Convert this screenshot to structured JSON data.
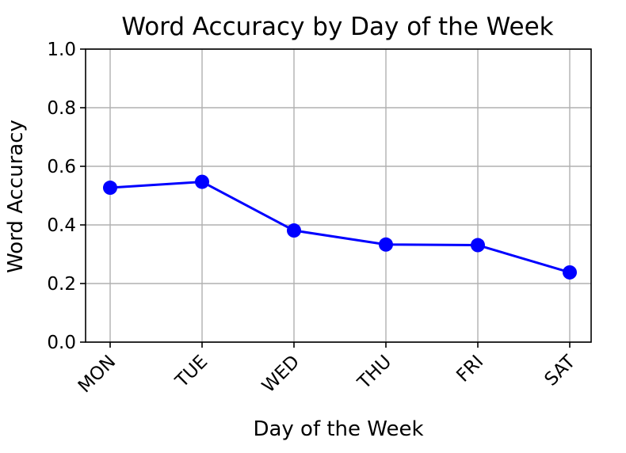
{
  "chart_data": {
    "type": "line",
    "title": "Word Accuracy by Day of the Week",
    "xlabel": "Day of the Week",
    "ylabel": "Word Accuracy",
    "categories": [
      "MON",
      "TUE",
      "WED",
      "THU",
      "FRI",
      "SAT"
    ],
    "values": [
      0.527,
      0.547,
      0.381,
      0.333,
      0.331,
      0.238
    ],
    "ylim": [
      0.0,
      1.0
    ],
    "yticks": [
      "0.0",
      "0.2",
      "0.4",
      "0.6",
      "0.8",
      "1.0"
    ],
    "ytick_values": [
      0.0,
      0.2,
      0.4,
      0.6,
      0.8,
      1.0
    ],
    "grid": true,
    "line_color": "#0000ff",
    "marker": "circle"
  }
}
